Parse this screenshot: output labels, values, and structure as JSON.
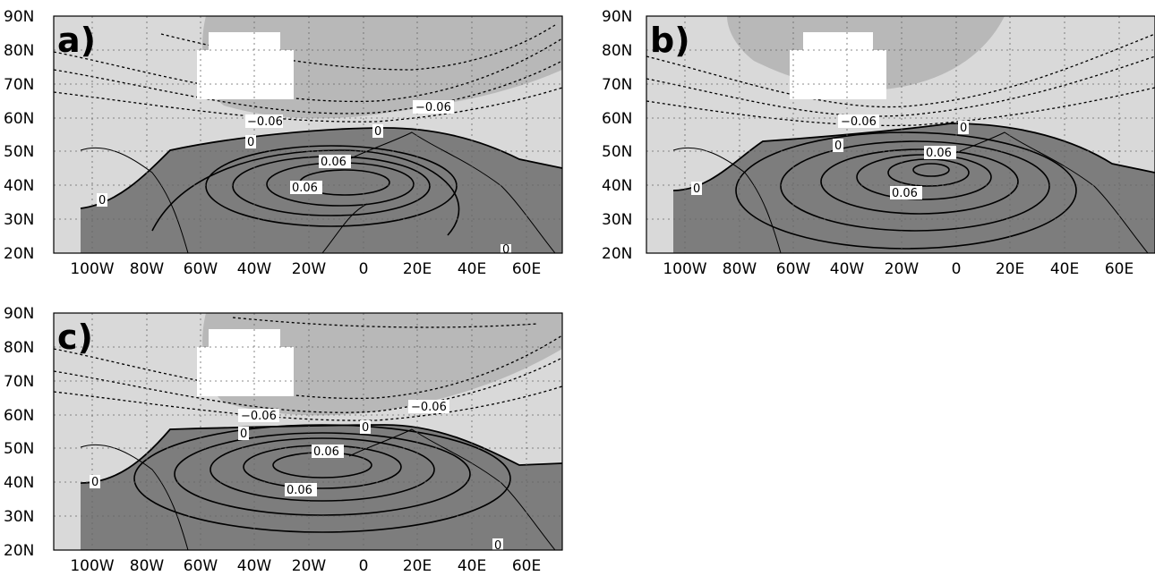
{
  "panels": [
    {
      "id": "a",
      "letter": "a)",
      "lat_ticks": [
        "90N",
        "80N",
        "70N",
        "60N",
        "50N",
        "40N",
        "30N",
        "20N"
      ],
      "lon_ticks": [
        "100W",
        "80W",
        "60W",
        "40W",
        "20W",
        "0",
        "20E",
        "40E",
        "60E"
      ],
      "contour_labels": [
        "-0.06",
        "-0.06",
        "0",
        "0",
        "0.06",
        "0.06",
        "0",
        "0"
      ]
    },
    {
      "id": "b",
      "letter": "b)",
      "lat_ticks": [
        "90N",
        "80N",
        "70N",
        "60N",
        "50N",
        "40N",
        "30N",
        "20N"
      ],
      "lon_ticks": [
        "100W",
        "80W",
        "60W",
        "40W",
        "20W",
        "0",
        "20E",
        "40E",
        "60E"
      ],
      "contour_labels": [
        "-0.06",
        "0",
        "0",
        "0.06",
        "0.06",
        "0"
      ]
    },
    {
      "id": "c",
      "letter": "c)",
      "lat_ticks": [
        "90N",
        "80N",
        "70N",
        "60N",
        "50N",
        "40N",
        "30N",
        "20N"
      ],
      "lon_ticks": [
        "100W",
        "80W",
        "60W",
        "40W",
        "20W",
        "0",
        "20E",
        "40E",
        "60E"
      ],
      "contour_labels": [
        "-0.06",
        "-0.06",
        "0",
        "0",
        "0.06",
        "0.06",
        "0",
        "0"
      ]
    }
  ],
  "colors": {
    "light_fill": "#d9d9d9",
    "mid_fill": "#b0b0b0",
    "dark_fill": "#7d7d7d",
    "contour": "#000000",
    "grid": "#666666"
  }
}
